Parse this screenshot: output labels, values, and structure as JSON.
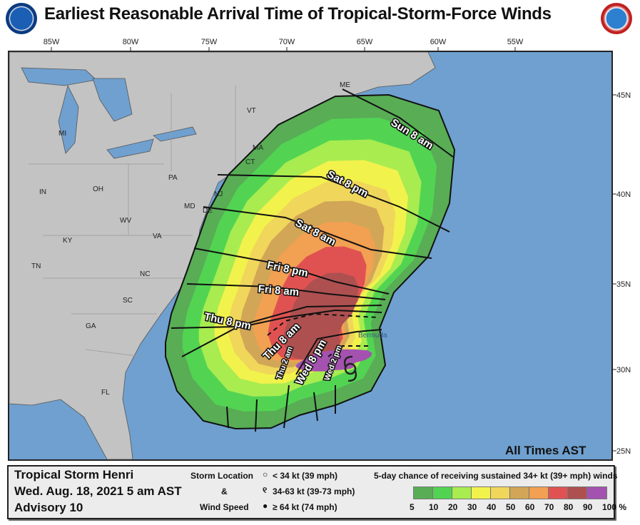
{
  "title": "Earliest Reasonable Arrival Time of Tropical-Storm-Force Winds",
  "logos": {
    "left": "NOAA",
    "right": "National Weather Service"
  },
  "map": {
    "lon_labels": [
      "85W",
      "80W",
      "75W",
      "70W",
      "65W",
      "60W",
      "55W"
    ],
    "lat_labels": [
      "45N",
      "40N",
      "35N",
      "30N",
      "25N"
    ],
    "state_labels": [
      "MI",
      "OH",
      "IN",
      "PA",
      "WV",
      "VA",
      "KY",
      "NC",
      "TN",
      "SC",
      "GA",
      "FL",
      "VT",
      "MA",
      "ME",
      "MD",
      "DE",
      "CT",
      "NJ"
    ],
    "place_labels": [
      "Bermuda"
    ],
    "time_labels": [
      "Sun 8 am",
      "Sat 8 pm",
      "Sat 8 am",
      "Fri 8 pm",
      "Fri 8 am",
      "Thu 8 pm",
      "Thu 8 am",
      "Thu 2 am",
      "Wed 8 pm",
      "Wed 2 pm"
    ],
    "times_note": "All Times AST",
    "colors": {
      "ocean": "#6fa0cf",
      "land": "#c3c3c3"
    }
  },
  "info": {
    "storm": "Tropical Storm Henri",
    "date": "Wed. Aug. 18, 2021  5 am AST",
    "advisory": "Advisory 10"
  },
  "storm_key": {
    "line1": "Storm Location",
    "line2": "&",
    "line3": "Wind Speed",
    "items": [
      "< 34 kt (39 mph)",
      "34-63 kt (39-73 mph)",
      "≥ 64 kt (74 mph)"
    ],
    "icons": [
      "circle-icon",
      "tropical-storm-icon",
      "hurricane-icon"
    ]
  },
  "probability": {
    "title": "5-day chance of receiving sustained 34+ kt (39+ mph) winds",
    "ticks": [
      "5",
      "10",
      "20",
      "30",
      "40",
      "50",
      "60",
      "70",
      "80",
      "90",
      "100 %"
    ],
    "colors": [
      "#58ad55",
      "#52d452",
      "#a8ec50",
      "#f2f24c",
      "#f0d65a",
      "#d2a657",
      "#f2a052",
      "#e05252",
      "#ae5050",
      "#a452b0"
    ]
  }
}
